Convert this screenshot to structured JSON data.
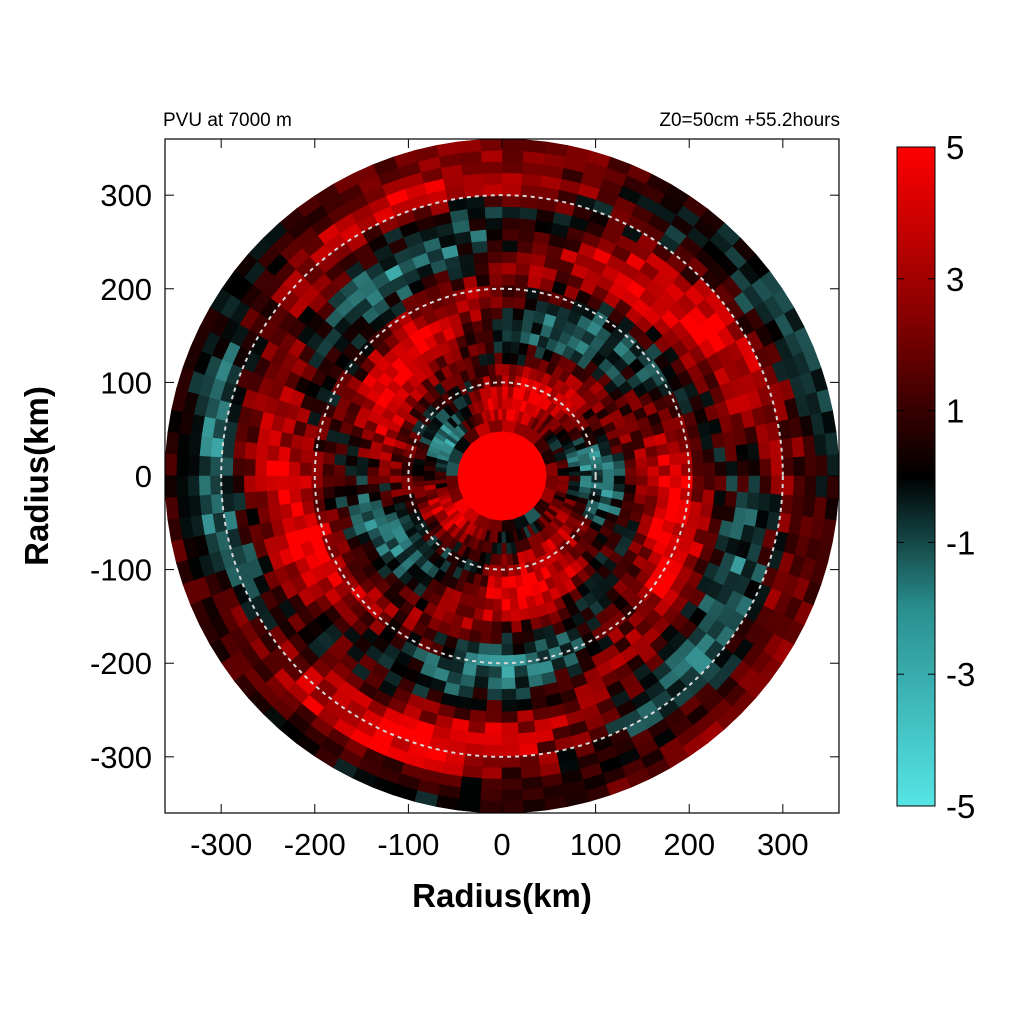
{
  "header": {
    "left": "PVU at  7000 m",
    "right": "Z0=50cm  +55.2hours"
  },
  "chart_data": {
    "type": "heatmap",
    "projection": "polar field on cartesian grid",
    "title_left": "PVU at  7000 m",
    "title_right": "Z0=50cm  +55.2hours",
    "xlabel": "Radius(km)",
    "ylabel": "Radius(km)",
    "xlim": [
      -360,
      360
    ],
    "ylim": [
      -360,
      360
    ],
    "x_ticks": [
      -300,
      -200,
      -100,
      0,
      100,
      200,
      300
    ],
    "y_ticks": [
      300,
      200,
      100,
      0,
      -100,
      -200,
      -300
    ],
    "x_tick_labels": [
      "-300",
      "-200",
      "-100",
      "0",
      "100",
      "200",
      "300"
    ],
    "y_tick_labels": [
      "300",
      "200",
      "100",
      "0",
      "-100",
      "-200",
      "-300"
    ],
    "domain_radius_km": 360,
    "reference_circles_km": [
      100,
      200,
      300
    ],
    "reference_circle_style": "dashed light gray",
    "colorbar": {
      "range": [
        -5,
        5
      ],
      "tick_values": [
        5,
        3,
        1,
        -1,
        -3,
        -5
      ],
      "tick_labels": [
        "5",
        "3",
        "1",
        "-1",
        "-3",
        "-5"
      ],
      "colors": [
        "#55e5e5",
        "#000000",
        "#ff0000"
      ],
      "placement": "right"
    },
    "field_description": "Strong positive PV (>5) filling a core of radius about 50 km, with spiral bands of positive (red) and negative (cyan) values extending outward to about 300 km.",
    "grid": false
  }
}
